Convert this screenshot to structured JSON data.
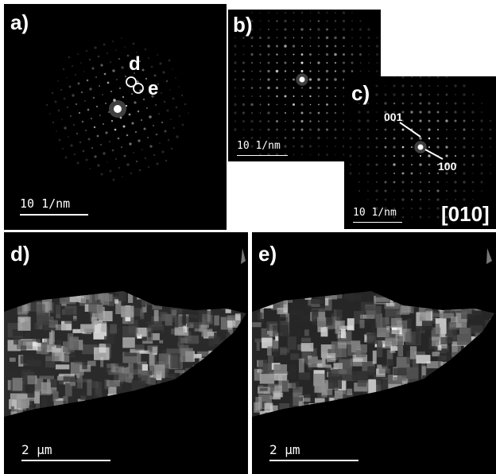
{
  "panels": {
    "a": {
      "label": "a)",
      "scale_bar": "10 1/nm",
      "spot_labels": {
        "d": "d",
        "e": "e"
      }
    },
    "b": {
      "label": "b)",
      "scale_bar": "10 1/nm"
    },
    "c": {
      "label": "c)",
      "scale_bar": "10 1/nm",
      "zone_axis": "[010]",
      "index_labels": {
        "first": "001",
        "second": "100"
      }
    },
    "d": {
      "label": "d)",
      "scale_bar": "2 μm"
    },
    "e": {
      "label": "e)",
      "scale_bar": "2 μm"
    }
  }
}
